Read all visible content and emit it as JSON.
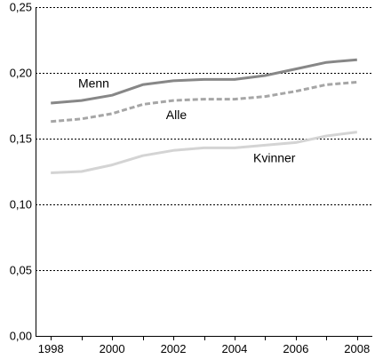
{
  "chart_data": {
    "type": "line",
    "title": "",
    "xlabel": "",
    "ylabel": "",
    "x": [
      1998,
      1999,
      2000,
      2001,
      2002,
      2003,
      2004,
      2005,
      2006,
      2007,
      2008
    ],
    "xlim": [
      1997.5,
      2008.5
    ],
    "ylim": [
      0,
      0.25
    ],
    "grid": "horizontal-dotted",
    "legend": "inline-labels",
    "x_ticks": [
      {
        "value": 1998,
        "label": "1998"
      },
      {
        "value": 2000,
        "label": "2000"
      },
      {
        "value": 2002,
        "label": "2002"
      },
      {
        "value": 2004,
        "label": "2004"
      },
      {
        "value": 2006,
        "label": "2006"
      },
      {
        "value": 2008,
        "label": "2008"
      }
    ],
    "y_ticks": [
      {
        "value": 0,
        "label": "0,00"
      },
      {
        "value": 0.05,
        "label": "0,05"
      },
      {
        "value": 0.1,
        "label": "0,10"
      },
      {
        "value": 0.15,
        "label": "0,15"
      },
      {
        "value": 0.2,
        "label": "0,20"
      },
      {
        "value": 0.25,
        "label": "0,25"
      }
    ],
    "series": [
      {
        "name": "Menn",
        "color": "#878787",
        "style": "solid",
        "values": [
          0.177,
          0.179,
          0.183,
          0.191,
          0.194,
          0.195,
          0.195,
          0.198,
          0.203,
          0.208,
          0.21
        ],
        "label_at": [
          1999.4,
          0.189
        ]
      },
      {
        "name": "Alle",
        "color": "#a6a6a6",
        "style": "dashed",
        "values": [
          0.163,
          0.165,
          0.169,
          0.176,
          0.179,
          0.18,
          0.18,
          0.182,
          0.186,
          0.191,
          0.193
        ],
        "label_at": [
          2002.1,
          0.165
        ]
      },
      {
        "name": "Kvinner",
        "color": "#d4d4d4",
        "style": "solid",
        "values": [
          0.124,
          0.125,
          0.13,
          0.137,
          0.141,
          0.143,
          0.143,
          0.145,
          0.147,
          0.152,
          0.155
        ],
        "label_at": [
          2005.3,
          0.132
        ]
      }
    ]
  }
}
